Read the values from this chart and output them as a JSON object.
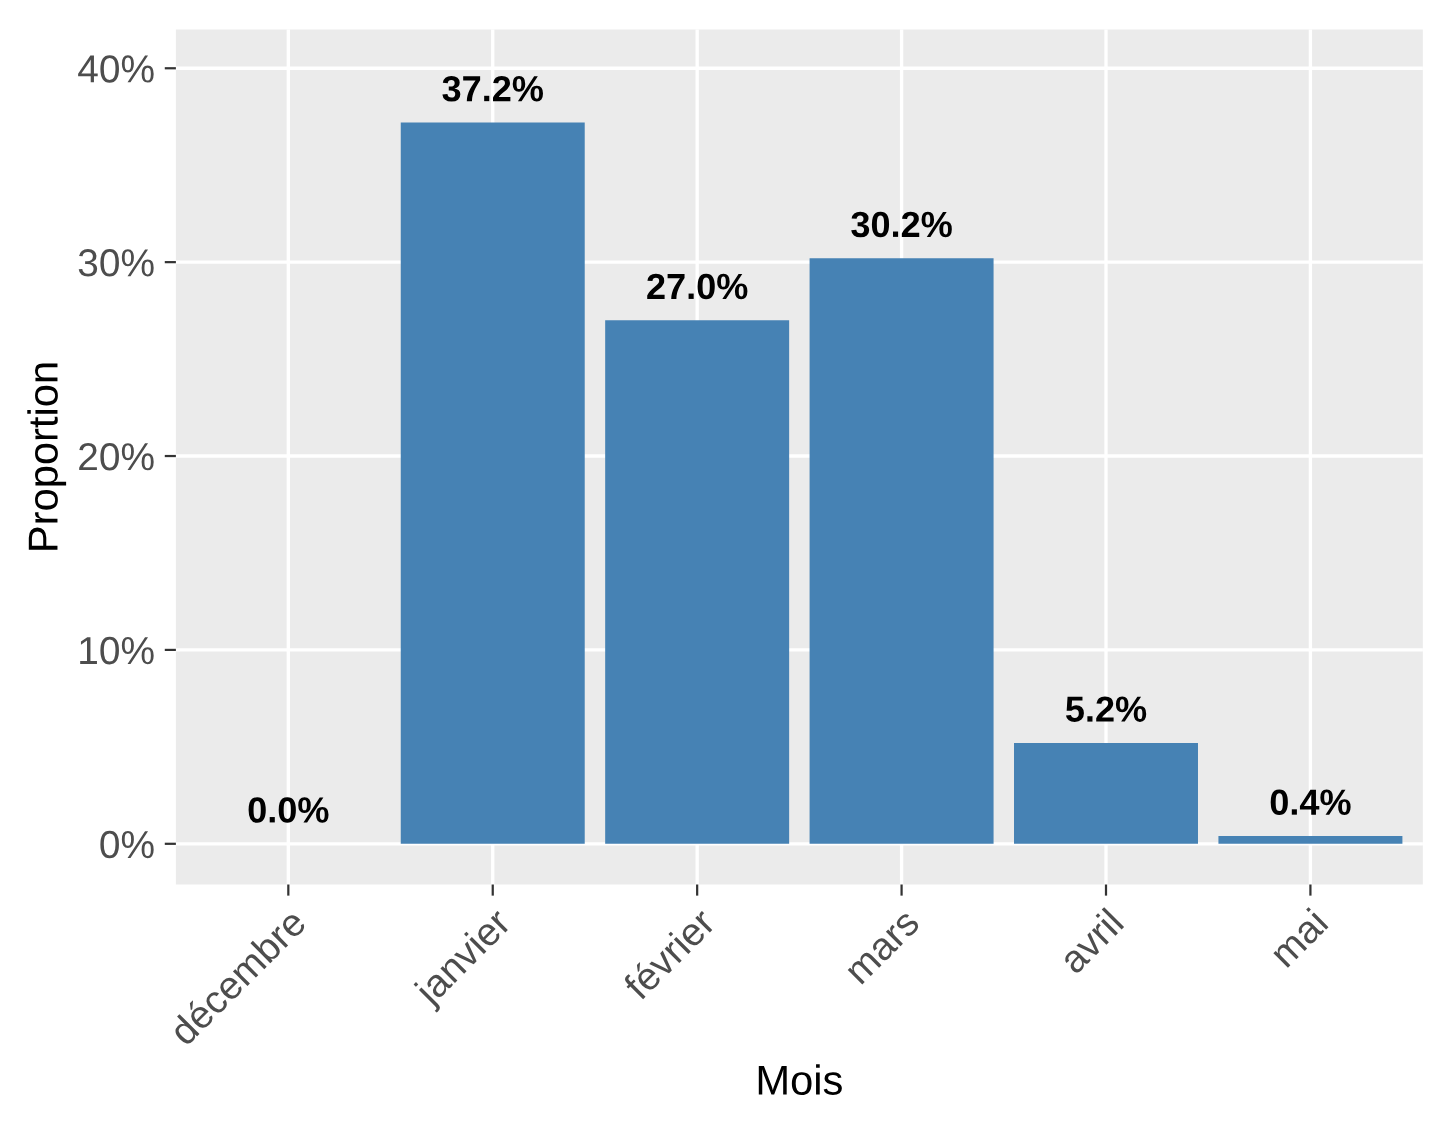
{
  "chart_data": {
    "type": "bar",
    "xlabel": "Mois",
    "ylabel": "Proportion",
    "categories": [
      "décembre",
      "janvier",
      "février",
      "mars",
      "avril",
      "mai"
    ],
    "values": [
      0.0,
      37.2,
      27.0,
      30.2,
      5.2,
      0.4
    ],
    "value_labels": [
      "0.0%",
      "37.2%",
      "27.0%",
      "30.2%",
      "5.2%",
      "0.4%"
    ],
    "color": "#4682b4",
    "ylim": [
      -2.1,
      42
    ],
    "yticks": [
      {
        "value": 0,
        "label": "0%"
      },
      {
        "value": 10,
        "label": "10%"
      },
      {
        "value": 20,
        "label": "20%"
      },
      {
        "value": 30,
        "label": "30%"
      },
      {
        "value": 40,
        "label": "40%"
      }
    ],
    "grid": true,
    "legend": false
  }
}
